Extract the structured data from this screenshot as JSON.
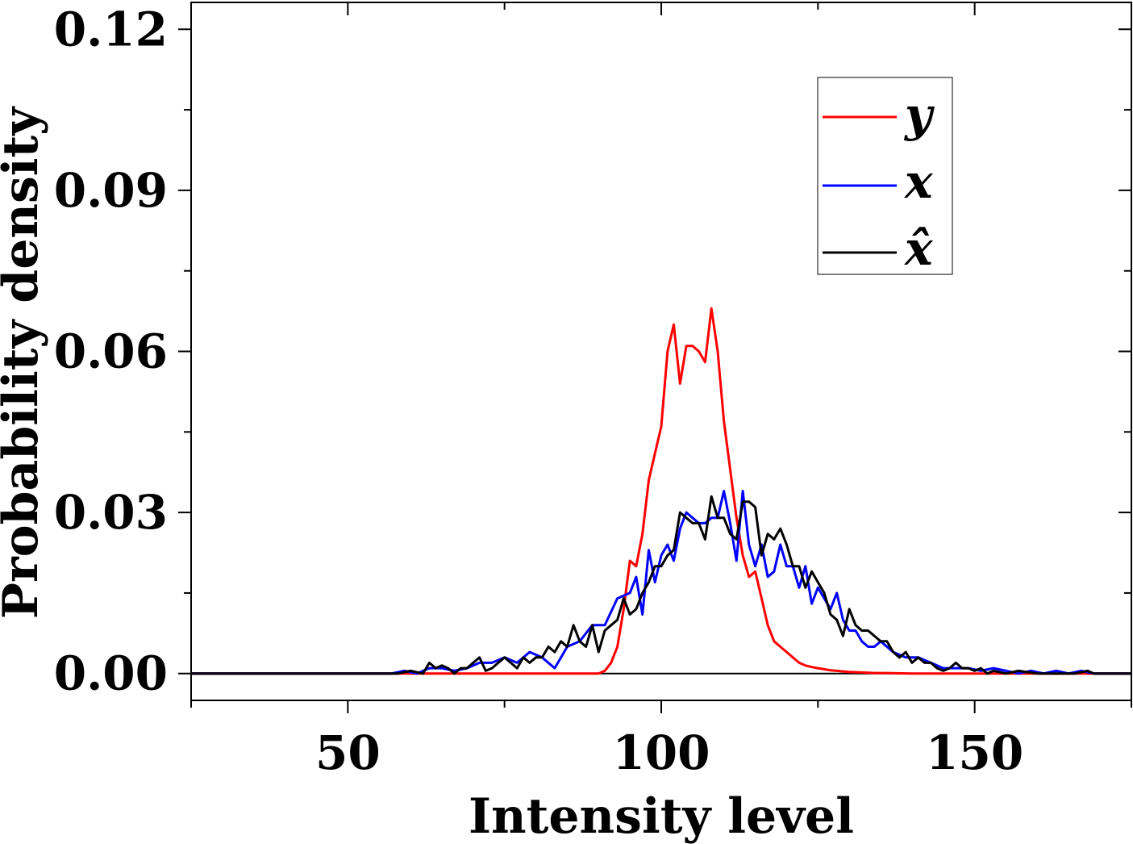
{
  "chart_data": {
    "type": "line",
    "xlabel": "Intensity level",
    "ylabel": "Probability density",
    "xlim": [
      25,
      175
    ],
    "ylim": [
      -0.005,
      0.125
    ],
    "x_ticks": [
      50,
      100,
      150
    ],
    "x_tick_labels": [
      "50",
      "100",
      "150"
    ],
    "y_ticks": [
      0.0,
      0.03,
      0.06,
      0.09,
      0.12
    ],
    "y_tick_labels": [
      "0.00",
      "0.03",
      "0.06",
      "0.09",
      "0.12"
    ],
    "grid": false,
    "legend_position": "top-right",
    "series": [
      {
        "name": "y",
        "color": "#ff0000",
        "x": [
          25,
          90,
          91,
          92,
          93,
          94,
          95,
          96,
          97,
          98,
          99,
          100,
          101,
          102,
          103,
          104,
          105,
          106,
          107,
          108,
          109,
          110,
          111,
          112,
          113,
          114,
          115,
          116,
          117,
          118,
          119,
          120,
          121,
          122,
          123,
          124,
          125,
          126,
          127,
          128,
          129,
          130,
          132,
          134,
          136,
          140,
          150,
          175
        ],
        "values": [
          0,
          0,
          0.0005,
          0.002,
          0.005,
          0.012,
          0.021,
          0.02,
          0.026,
          0.036,
          0.041,
          0.046,
          0.06,
          0.065,
          0.054,
          0.061,
          0.061,
          0.06,
          0.058,
          0.068,
          0.06,
          0.047,
          0.038,
          0.029,
          0.022,
          0.018,
          0.019,
          0.014,
          0.009,
          0.006,
          0.005,
          0.004,
          0.003,
          0.002,
          0.0015,
          0.0012,
          0.001,
          0.0008,
          0.0006,
          0.0005,
          0.0004,
          0.0003,
          0.0002,
          0.0001,
          0.0001,
          0,
          0,
          0
        ]
      },
      {
        "name": "x",
        "color": "#0000ff",
        "x": [
          25,
          55,
          57,
          59,
          61,
          63,
          65,
          67,
          69,
          71,
          73,
          75,
          77,
          79,
          81,
          83,
          85,
          87,
          89,
          91,
          93,
          95,
          96,
          97,
          98,
          99,
          100,
          101,
          102,
          103,
          104,
          105,
          106,
          107,
          108,
          109,
          110,
          111,
          112,
          113,
          114,
          115,
          116,
          117,
          118,
          119,
          120,
          121,
          122,
          123,
          124,
          125,
          126,
          127,
          128,
          129,
          130,
          131,
          132,
          133,
          134,
          135,
          137,
          139,
          141,
          143,
          145,
          147,
          149,
          151,
          153,
          155,
          157,
          159,
          161,
          163,
          165,
          167,
          169,
          175
        ],
        "values": [
          0,
          0,
          0,
          0.0005,
          0,
          0.001,
          0.001,
          0.0005,
          0.001,
          0.002,
          0.002,
          0.003,
          0.002,
          0.004,
          0.003,
          0.001,
          0.005,
          0.006,
          0.009,
          0.009,
          0.014,
          0.015,
          0.018,
          0.011,
          0.023,
          0.017,
          0.022,
          0.024,
          0.021,
          0.027,
          0.03,
          0.029,
          0.028,
          0.028,
          0.029,
          0.029,
          0.034,
          0.028,
          0.021,
          0.034,
          0.024,
          0.02,
          0.024,
          0.018,
          0.019,
          0.024,
          0.02,
          0.02,
          0.016,
          0.02,
          0.013,
          0.016,
          0.014,
          0.012,
          0.015,
          0.01,
          0.008,
          0.008,
          0.006,
          0.005,
          0.005,
          0.006,
          0.004,
          0.003,
          0.003,
          0.002,
          0.001,
          0.001,
          0.001,
          0.0005,
          0.001,
          0.0005,
          0,
          0.0005,
          0,
          0.0005,
          0,
          0.0005,
          0,
          0
        ]
      },
      {
        "name": "x̂",
        "color": "#000000",
        "x": [
          25,
          58,
          60,
          62,
          63,
          64,
          65,
          66,
          67,
          68,
          69,
          70,
          71,
          72,
          73,
          74,
          75,
          76,
          77,
          78,
          79,
          80,
          81,
          82,
          83,
          84,
          85,
          86,
          87,
          88,
          89,
          90,
          91,
          92,
          93,
          94,
          95,
          96,
          97,
          98,
          99,
          100,
          101,
          102,
          103,
          104,
          105,
          106,
          107,
          108,
          109,
          110,
          111,
          112,
          113,
          114,
          115,
          116,
          117,
          118,
          119,
          120,
          121,
          122,
          123,
          124,
          125,
          126,
          127,
          128,
          129,
          130,
          131,
          132,
          133,
          134,
          135,
          136,
          137,
          138,
          139,
          140,
          141,
          142,
          143,
          144,
          145,
          146,
          147,
          148,
          149,
          150,
          151,
          152,
          153,
          155,
          157,
          160,
          163,
          166,
          168,
          169,
          175
        ],
        "values": [
          0,
          0,
          0.0005,
          0,
          0.002,
          0.001,
          0.0015,
          0.001,
          0,
          0.001,
          0.001,
          0.002,
          0.003,
          0.0005,
          0.001,
          0.002,
          0.003,
          0.002,
          0.001,
          0.003,
          0.002,
          0.003,
          0.003,
          0.005,
          0.004,
          0.006,
          0.005,
          0.009,
          0.006,
          0.005,
          0.009,
          0.004,
          0.008,
          0.009,
          0.01,
          0.014,
          0.011,
          0.012,
          0.015,
          0.017,
          0.02,
          0.02,
          0.022,
          0.023,
          0.03,
          0.029,
          0.028,
          0.028,
          0.025,
          0.033,
          0.029,
          0.029,
          0.026,
          0.025,
          0.032,
          0.032,
          0.031,
          0.022,
          0.026,
          0.025,
          0.027,
          0.024,
          0.02,
          0.02,
          0.016,
          0.019,
          0.017,
          0.015,
          0.011,
          0.01,
          0.007,
          0.012,
          0.009,
          0.008,
          0.008,
          0.007,
          0.006,
          0.006,
          0.004,
          0.003,
          0.004,
          0.002,
          0.003,
          0.002,
          0.002,
          0.001,
          0.0005,
          0.001,
          0.002,
          0.001,
          0.001,
          0.0005,
          0.001,
          0,
          0.0005,
          0,
          0.0005,
          0,
          0,
          0,
          0.0005,
          0,
          0
        ]
      }
    ]
  }
}
